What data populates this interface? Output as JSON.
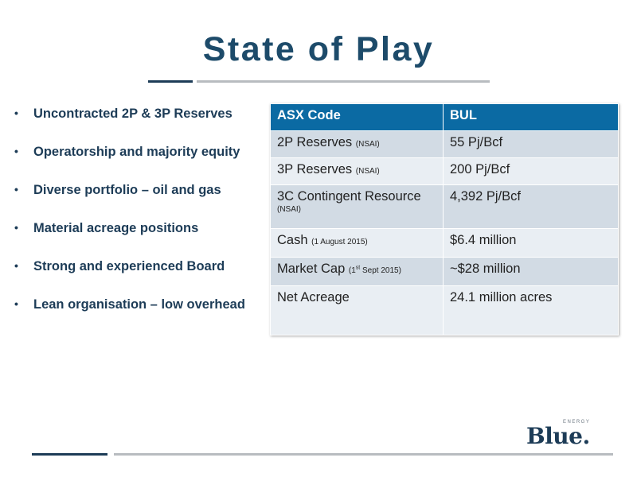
{
  "slide": {
    "title": "State of Play"
  },
  "bullets": [
    "Uncontracted 2P & 3P Reserves",
    "Operatorship and majority equity",
    "Diverse portfolio – oil and gas",
    "Material acreage positions",
    "Strong and  experienced Board",
    "Lean organisation – low overhead"
  ],
  "table": {
    "header": {
      "label": "ASX Code",
      "value": "BUL"
    },
    "rows": [
      {
        "label": "2P Reserves",
        "note": "(NSAI)",
        "value": "55 Pj/Bcf"
      },
      {
        "label": "3P Reserves",
        "note": "(NSAI)",
        "value": "200 Pj/Bcf"
      },
      {
        "label": "3C Contingent Resource",
        "note": "(NSAI)",
        "value": "4,392 Pj/Bcf"
      },
      {
        "label": "Cash",
        "note": "(1 August 2015)",
        "value": "$6.4 million"
      },
      {
        "label": "Market Cap",
        "note_pre": "(1",
        "note_sup": "st",
        "note_post": " Sept 2015)",
        "value": "~$28 million"
      },
      {
        "label": "Net Acreage",
        "value": "24.1 million acres"
      }
    ]
  },
  "logo": {
    "word": "Blue.",
    "tag": "ENERGY"
  },
  "colors": {
    "title": "#1d4b6a",
    "header_bg": "#0b6aa3",
    "row_odd": "#d2dbe4",
    "row_even": "#e9eef3",
    "rule_dark": "#1d3c57",
    "rule_light": "#b8bcc0"
  }
}
